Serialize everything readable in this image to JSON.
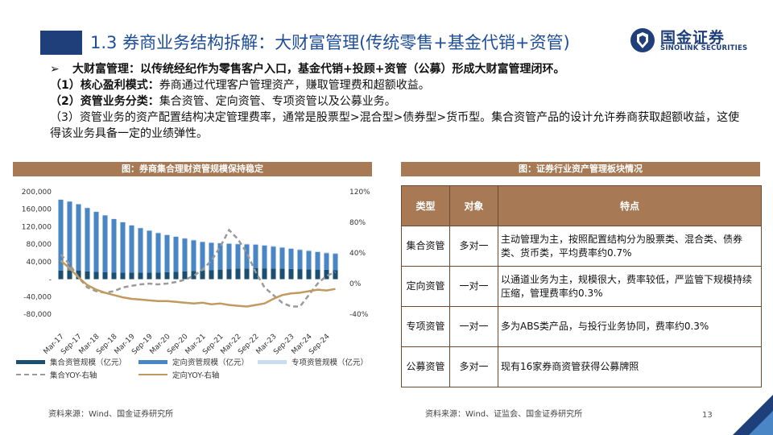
{
  "header": {
    "title": "1.3 券商业务结构拆解：大财富管理(传统零售+基金代销+资管)",
    "logo_cn": "国金证券",
    "logo_en": "SINOLINK SECURITIES"
  },
  "bullets": {
    "arrow": "➢",
    "line1": "大财富管理：以传统经纪作为零售客户入口，基金代销+投顾+资管（公募）形成大财富管理闭环。",
    "line2_head": "（1）核心盈利模式：",
    "line2_body": "券商通过代理客户管理资产，赚取管理费和超额收益。",
    "line3_head": "（2）资管业务分类：",
    "line3_body": "集合资管、定向资管、专项资管以及公募业务。",
    "line4": "（3）资管业务的资产配置结构决定管理费率，通常是股票型>混合型>债券型>货币型。集合资管产品的设计允许券商获取超额收益，这使得该业务具备一定的业绩弹性。"
  },
  "left_panel": {
    "title": "图：券商集合理财资管规模保持稳定",
    "source": "资料来源：Wind、国金证券研究所"
  },
  "right_panel": {
    "title": "图：证券行业资产管理板块情况",
    "source": "资料来源：Wind、证监会、国金证券研究所",
    "headers": [
      "类型",
      "对象",
      "特点"
    ],
    "rows": [
      {
        "type": "集合资管",
        "target": "多对一",
        "desc": "主动管理为主，按照配置结构分为股票类、混合类、债券类、货币类，平均费率约0.7%"
      },
      {
        "type": "定向资管",
        "target": "一对一",
        "desc": "以通道业务为主，规模很大，费率较低，严监管下规模持续压缩，管理费率约0.3%"
      },
      {
        "type": "专项资管",
        "target": "一对一",
        "desc": "多为ABS类产品，与投行业务协同，费率约0.3%"
      },
      {
        "type": "公募资管",
        "target": "多对一",
        "desc": "现有16家券商资管获得公募牌照"
      }
    ]
  },
  "page_number": "13",
  "colors": {
    "collective": "#1b4f72",
    "directional": "#4a86c5",
    "special": "#c9ddf0",
    "collective_yoy": "#9a9a9a",
    "directional_yoy": "#c29a5f",
    "accent": "#a77a55"
  },
  "chart_data": {
    "type": "bar",
    "title": "图：券商集合理财资管规模保持稳定",
    "xlabel": "",
    "ylabel_left": "",
    "ylim_left": [
      -80000,
      200000
    ],
    "ylim_right": [
      -40,
      120
    ],
    "yticks_left": [
      "200,000",
      "160,000",
      "120,000",
      "80,000",
      "40,000",
      "-",
      "-40,000",
      "-80,000"
    ],
    "yticks_right": [
      "120%",
      "80%",
      "40%",
      "0%",
      "-40%"
    ],
    "x_tick_labels": [
      "Mar-17",
      "Sep-17",
      "Mar-18",
      "Sep-18",
      "Mar-19",
      "Sep-19",
      "Mar-20",
      "Sep-20",
      "Mar-21",
      "Sep-21",
      "Mar-22",
      "Sep-22",
      "Mar-23",
      "Sep-23",
      "Mar-24",
      "Sep-24"
    ],
    "legend": [
      "集合资管规模（亿元）",
      "定向资管规模（亿元）",
      "专项资管规模（亿元）",
      "集合YOY-右轴",
      "定向YOY-右轴"
    ],
    "series": [
      {
        "name": "集合资管规模（亿元）",
        "axis": "left",
        "kind": "bar",
        "values": [
          20000,
          19800,
          19500,
          18000,
          17000,
          16000,
          15500,
          15200,
          15000,
          14800,
          15000,
          15500,
          16000,
          17000,
          18000,
          19000,
          20000,
          21000,
          22000,
          23000,
          24000,
          24500,
          25000,
          24800,
          24500,
          24000,
          23500,
          23000,
          22500,
          22000,
          21500,
          21000
        ]
      },
      {
        "name": "定向资管规模（亿元）",
        "axis": "left",
        "kind": "bar",
        "values": [
          162000,
          158000,
          152000,
          145000,
          137000,
          130000,
          122000,
          115000,
          108000,
          102000,
          96000,
          90000,
          85000,
          80000,
          75000,
          70000,
          65000,
          62000,
          60000,
          58000,
          56000,
          55000,
          54000,
          52000,
          50000,
          48000,
          46000,
          44000,
          42000,
          40000,
          38000,
          37000
        ]
      },
      {
        "name": "专项资管规模（亿元）",
        "axis": "left",
        "kind": "bar",
        "values": [
          500,
          500,
          600,
          600,
          700,
          700,
          800,
          800,
          900,
          900,
          1000,
          1000,
          1100,
          1100,
          1200,
          1200,
          1300,
          1300,
          1400,
          1400,
          1500,
          1500,
          1600,
          1600,
          1700,
          1700,
          1800,
          1800,
          1900,
          1900,
          2000,
          2000
        ]
      },
      {
        "name": "集合YOY-右轴",
        "axis": "right",
        "kind": "line",
        "values": [
          38,
          25,
          8,
          -5,
          -10,
          -12,
          -10,
          -5,
          -3,
          -1,
          0,
          -1,
          0,
          2,
          5,
          10,
          18,
          30,
          48,
          70,
          58,
          40,
          15,
          -5,
          -15,
          -25,
          -30,
          -30,
          -15,
          0,
          10,
          15
        ]
      },
      {
        "name": "定向YOY-右轴",
        "axis": "right",
        "kind": "line",
        "values": [
          30,
          20,
          8,
          -2,
          -8,
          -12,
          -15,
          -18,
          -20,
          -21,
          -22,
          -23,
          -23,
          -24,
          -25,
          -26,
          -25,
          -27,
          -26,
          -28,
          -29,
          -30,
          -28,
          -26,
          -20,
          -15,
          -13,
          -12,
          -10,
          -8,
          -9,
          -7
        ]
      }
    ]
  }
}
